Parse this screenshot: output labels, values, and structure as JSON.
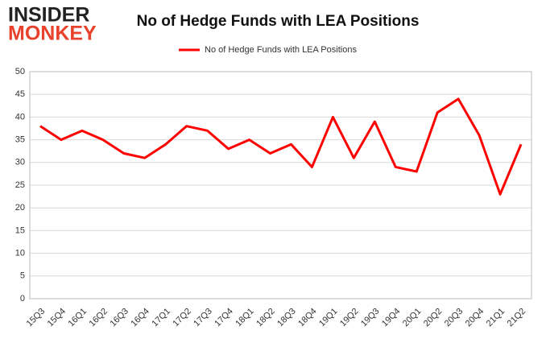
{
  "logo": {
    "line1": "INSIDER",
    "line2": "MONKEY"
  },
  "chart_data": {
    "type": "line",
    "title": "No of Hedge Funds with LEA Positions",
    "categories": [
      "15Q3",
      "15Q4",
      "16Q1",
      "16Q2",
      "16Q3",
      "16Q4",
      "17Q1",
      "17Q2",
      "17Q3",
      "17Q4",
      "18Q1",
      "18Q2",
      "18Q3",
      "18Q4",
      "19Q1",
      "19Q2",
      "19Q3",
      "19Q4",
      "20Q1",
      "20Q2",
      "20Q3",
      "20Q4",
      "21Q1",
      "21Q2"
    ],
    "series": [
      {
        "name": "No of Hedge Funds with LEA Positions",
        "color": "#ff0000",
        "values": [
          38,
          35,
          37,
          35,
          32,
          31,
          34,
          38,
          37,
          33,
          35,
          32,
          34,
          29,
          40,
          31,
          39,
          29,
          28,
          41,
          44,
          36,
          23,
          34
        ]
      }
    ],
    "ylim": [
      0,
      50
    ],
    "yticks": [
      0,
      5,
      10,
      15,
      20,
      25,
      30,
      35,
      40,
      45,
      50
    ],
    "grid": true,
    "legend": "top"
  }
}
